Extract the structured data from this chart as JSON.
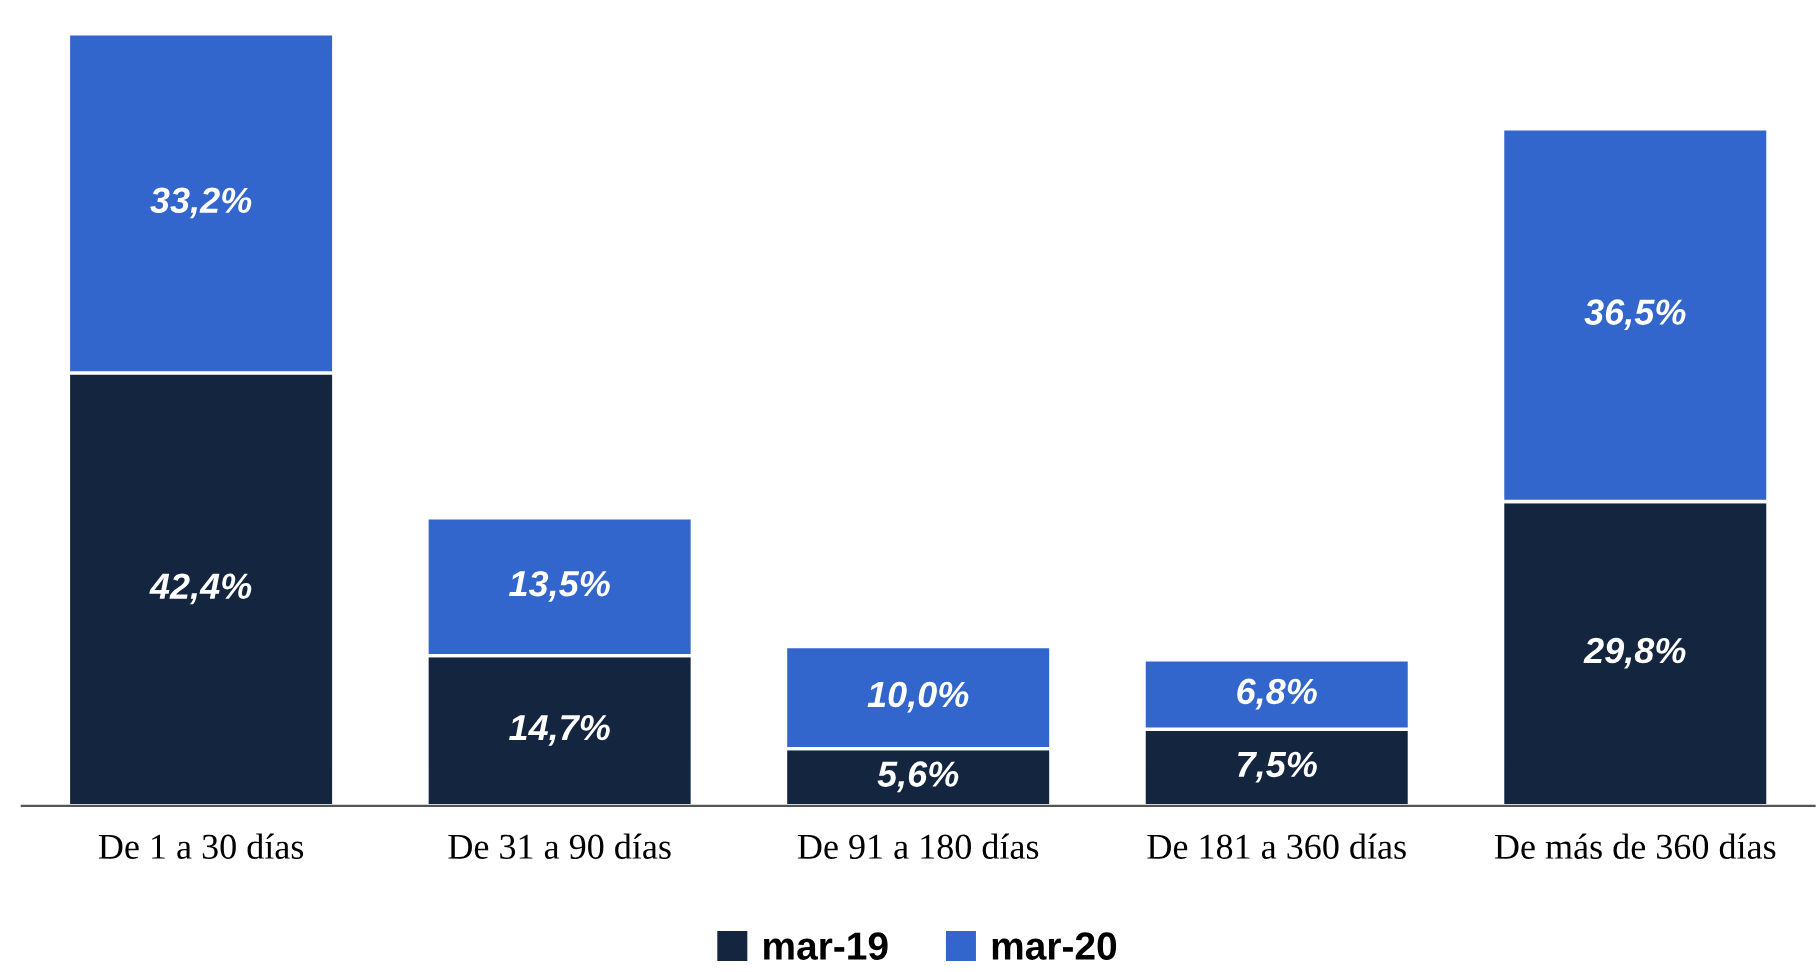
{
  "chart_data": {
    "type": "bar",
    "stacked": true,
    "categories": [
      "De 1 a 30 días",
      "De 31 a 90 días",
      "De 91 a 180 días",
      "De 181 a 360 días",
      "De más de 360 días"
    ],
    "series": [
      {
        "name": "mar-19",
        "color": "#14253f",
        "values": [
          42.4,
          14.7,
          5.6,
          7.5,
          29.8
        ],
        "value_labels": [
          "42,4%",
          "14,7%",
          "5,6%",
          "7,5%",
          "29,8%"
        ]
      },
      {
        "name": "mar-20",
        "color": "#3366cc",
        "values": [
          33.2,
          13.5,
          10.0,
          6.8,
          36.5
        ],
        "value_labels": [
          "33,2%",
          "13,5%",
          "10,0%",
          "6,8%",
          "36,5%"
        ]
      }
    ],
    "tick_labels": "x",
    "grid": false,
    "legend": "bottom"
  }
}
